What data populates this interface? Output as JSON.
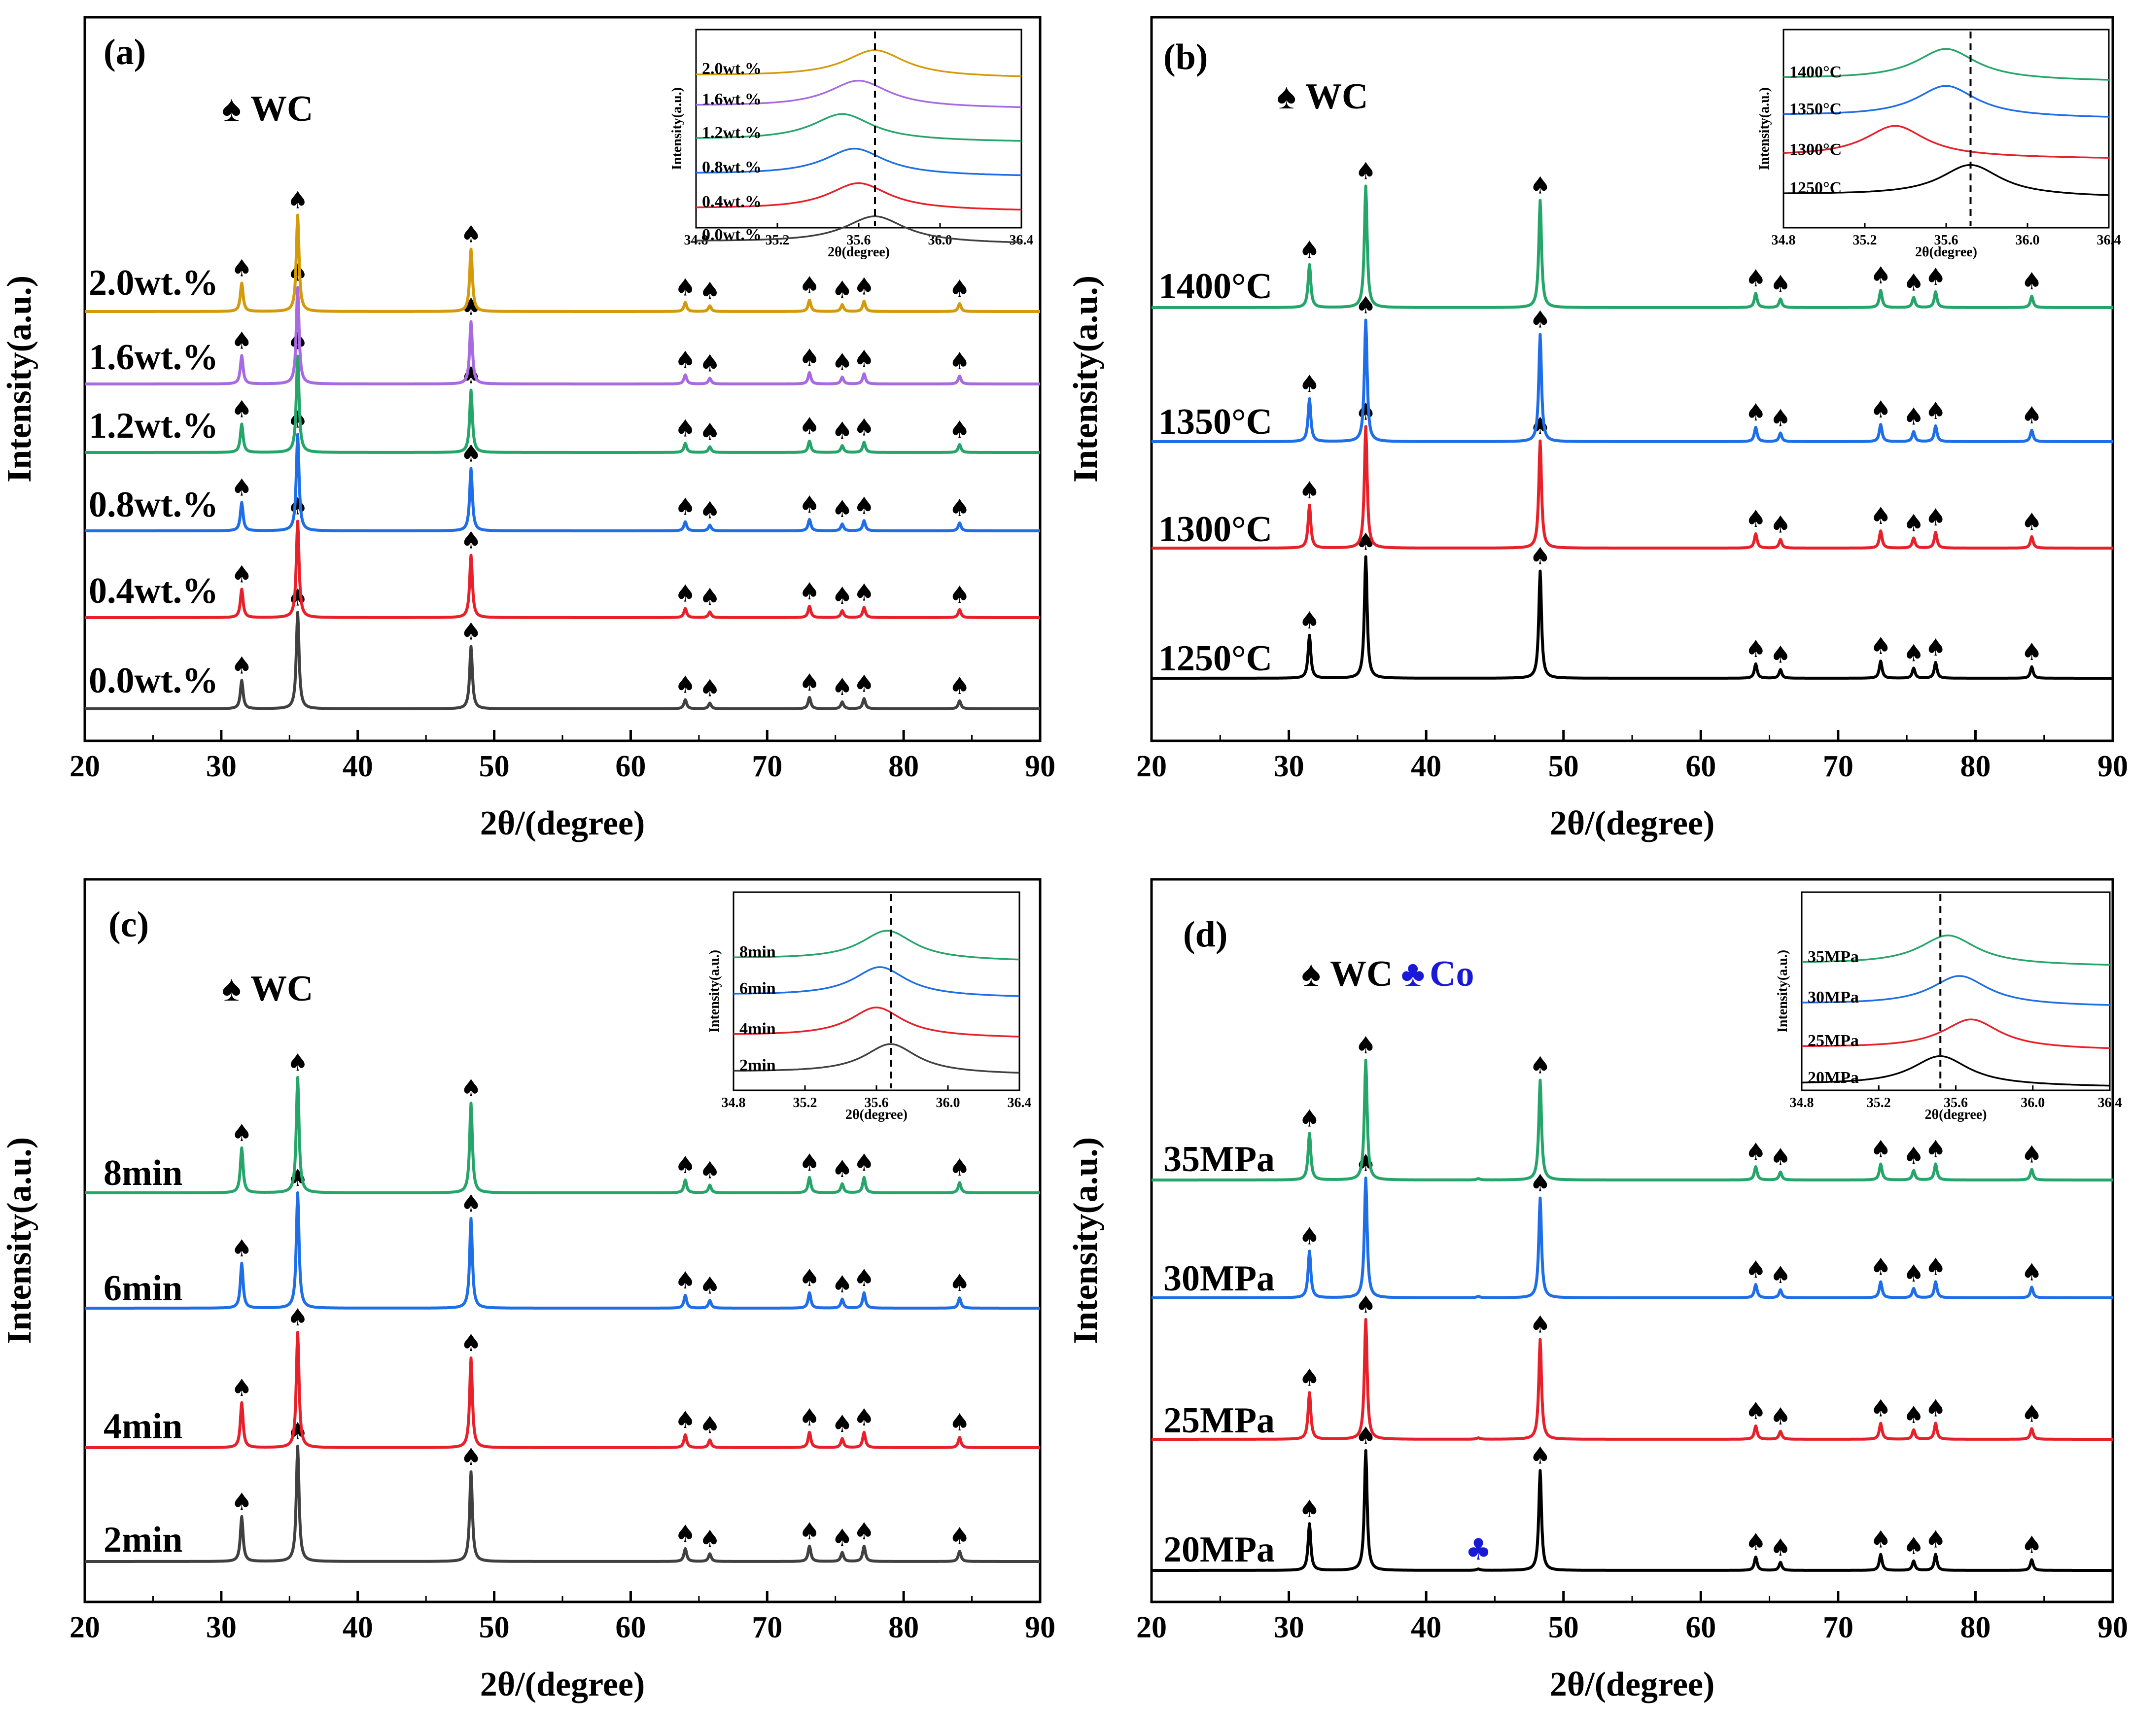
{
  "figure": {
    "description_labels": [
      "(a)",
      "(b)",
      "(c)",
      "(d)"
    ]
  },
  "chart_data": [
    {
      "type": "line",
      "panel": "(a)",
      "xlabel": "2θ/(degree)",
      "ylabel": "Intensity(a.u.)",
      "xlim": [
        20,
        90
      ],
      "xticks": [
        20,
        30,
        40,
        50,
        60,
        70,
        80,
        90
      ],
      "legend": [
        {
          "symbol": "♠",
          "label": "WC"
        }
      ],
      "peaks_wc": [
        31.5,
        35.6,
        48.3,
        64.0,
        65.8,
        73.1,
        75.5,
        77.1,
        84.1
      ],
      "peak_heights": [
        0.25,
        0.85,
        0.55,
        0.08,
        0.05,
        0.1,
        0.06,
        0.09,
        0.07
      ],
      "series": [
        {
          "name": "0.0wt.%",
          "color": "#404040"
        },
        {
          "name": "0.4wt.%",
          "color": "#e8202a"
        },
        {
          "name": "0.8wt.%",
          "color": "#1e6ee8"
        },
        {
          "name": "1.2wt.%",
          "color": "#26a56a"
        },
        {
          "name": "1.6wt.%",
          "color": "#a86ae0"
        },
        {
          "name": "2.0wt.%",
          "color": "#d49a0a"
        }
      ],
      "inset": {
        "xlabel": "2θ(degree)",
        "ylabel": "Intensity(a.u.)",
        "xlim": [
          34.8,
          36.4
        ],
        "xticks": [
          "34.8",
          "35.2",
          "35.6",
          "36.0",
          "36.4"
        ],
        "reference_line": 35.68,
        "peak_centers": [
          35.68,
          35.6,
          35.58,
          35.52,
          35.6,
          35.68
        ]
      }
    },
    {
      "type": "line",
      "panel": "(b)",
      "xlabel": "2θ/(degree)",
      "ylabel": "Intensity(a.u.)",
      "xlim": [
        20,
        90
      ],
      "xticks": [
        20,
        30,
        40,
        50,
        60,
        70,
        80,
        90
      ],
      "legend": [
        {
          "symbol": "♠",
          "label": "WC"
        }
      ],
      "peaks_wc": [
        31.5,
        35.6,
        48.3,
        64.0,
        65.8,
        73.1,
        75.5,
        77.1,
        84.1
      ],
      "peak_heights": [
        0.3,
        0.85,
        0.75,
        0.1,
        0.06,
        0.12,
        0.07,
        0.11,
        0.08
      ],
      "series": [
        {
          "name": "1250°C",
          "color": "#000000"
        },
        {
          "name": "1300°C",
          "color": "#e8202a"
        },
        {
          "name": "1350°C",
          "color": "#1e6ee8"
        },
        {
          "name": "1400°C",
          "color": "#26a56a"
        }
      ],
      "inset": {
        "xlabel": "2θ(degree)",
        "ylabel": "Intensity(a.u.)",
        "xlim": [
          34.8,
          36.4
        ],
        "xticks": [
          "34.8",
          "35.2",
          "35.6",
          "36.0",
          "36.4"
        ],
        "reference_line": 35.72,
        "peak_centers": [
          35.72,
          35.35,
          35.6,
          35.6
        ]
      }
    },
    {
      "type": "line",
      "panel": "(c)",
      "xlabel": "2θ/(degree)",
      "ylabel": "Intensity(a.u.)",
      "xlim": [
        20,
        90
      ],
      "xticks": [
        20,
        30,
        40,
        50,
        60,
        70,
        80,
        90
      ],
      "legend": [
        {
          "symbol": "♠",
          "label": "WC"
        }
      ],
      "peaks_wc": [
        31.5,
        35.6,
        48.3,
        64.0,
        65.8,
        73.1,
        75.5,
        77.1,
        84.1
      ],
      "peak_heights": [
        0.35,
        0.9,
        0.7,
        0.1,
        0.06,
        0.12,
        0.07,
        0.12,
        0.08
      ],
      "series": [
        {
          "name": "2min",
          "color": "#404040"
        },
        {
          "name": "4min",
          "color": "#e8202a"
        },
        {
          "name": "6min",
          "color": "#1e6ee8"
        },
        {
          "name": "8min",
          "color": "#26a56a"
        }
      ],
      "inset": {
        "xlabel": "2θ(degree)",
        "ylabel": "Intensity(a.u.)",
        "xlim": [
          34.8,
          36.4
        ],
        "xticks": [
          "34.8",
          "35.2",
          "35.6",
          "36.0",
          "36.4"
        ],
        "reference_line": 35.68,
        "peak_centers": [
          35.68,
          35.6,
          35.62,
          35.66
        ]
      }
    },
    {
      "type": "line",
      "panel": "(d)",
      "xlabel": "2θ/(degree)",
      "ylabel": "Intensity(a.u.)",
      "xlim": [
        20,
        90
      ],
      "xticks": [
        20,
        30,
        40,
        50,
        60,
        70,
        80,
        90
      ],
      "legend": [
        {
          "symbol": "♠",
          "label": "WC"
        },
        {
          "symbol": "♣",
          "label": "Co"
        }
      ],
      "peaks_wc": [
        31.5,
        35.6,
        48.3,
        64.0,
        65.8,
        73.1,
        75.5,
        77.1,
        84.1
      ],
      "peak_heights": [
        0.35,
        0.9,
        0.75,
        0.1,
        0.06,
        0.12,
        0.07,
        0.12,
        0.08
      ],
      "peaks_co": [
        43.8
      ],
      "series": [
        {
          "name": "20MPa",
          "color": "#000000"
        },
        {
          "name": "25MPa",
          "color": "#e8202a"
        },
        {
          "name": "30MPa",
          "color": "#1e6ee8"
        },
        {
          "name": "35MPa",
          "color": "#26a56a"
        }
      ],
      "inset": {
        "xlabel": "2θ(degree)",
        "ylabel": "Intensity(a.u.)",
        "xlim": [
          34.8,
          36.4
        ],
        "xticks": [
          "34.8",
          "35.2",
          "35.6",
          "36.0",
          "36.4"
        ],
        "reference_line": 35.52,
        "peak_centers": [
          35.52,
          35.68,
          35.62,
          35.56
        ]
      }
    }
  ]
}
